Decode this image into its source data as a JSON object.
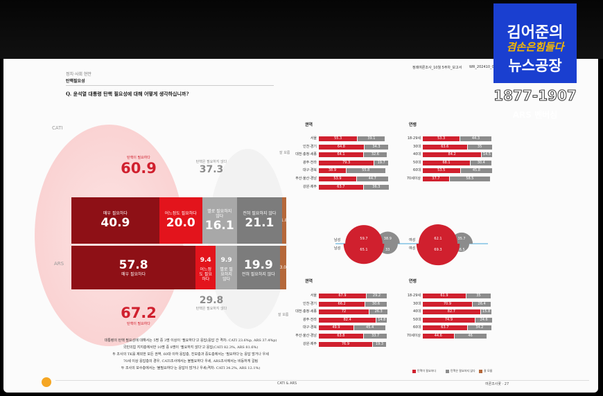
{
  "overlay": {
    "line1": "김어준의",
    "line2": "겸손은힘들다",
    "line3": "뉴스공장",
    "phone": "1877-1907",
    "caption": "ARS 벤버심"
  },
  "header": {
    "section": "정치·사회 현안",
    "topic": "탄핵필요성",
    "question": "Q. 윤석열 대통령 탄핵 필요성에 대해 어떻게 생각하십니까?",
    "report": "정례여론조사_10월 5주차_보고서",
    "code": "WR_202410_05"
  },
  "chart_data": [
    {
      "type": "stacked-bar",
      "categories": [
        "CATI",
        "ARS"
      ],
      "xlim": [
        0,
        100
      ],
      "series": [
        {
          "name": "매우 필요하다",
          "color": "#8e1016",
          "values": [
            40.9,
            57.8
          ]
        },
        {
          "name": "어느정도 필요하다",
          "color": "#e3141c",
          "values": [
            20.0,
            9.4
          ]
        },
        {
          "name": "별로 필요하지 않다",
          "color": "#a8a8a8",
          "values": [
            16.1,
            9.9
          ]
        },
        {
          "name": "전혀 필요하지 않다",
          "color": "#7c7c7c",
          "values": [
            21.1,
            19.9
          ]
        },
        {
          "name": "잘 모름",
          "color": "#b5683a",
          "values": [
            1.8,
            3.0
          ]
        }
      ],
      "value_labels": [
        [
          "40.9",
          "57.8"
        ],
        [
          "20.0",
          "9.4"
        ],
        [
          "16.1",
          "9.9"
        ],
        [
          "21.1",
          "19.9"
        ],
        [
          "1.8",
          "3.0"
        ]
      ],
      "totals": [
        {
          "name": "탄핵이 필요하다",
          "color": "#d0202e",
          "values": [
            60.9,
            67.2
          ]
        },
        {
          "name": "탄핵은 필요하지 않다",
          "color": "#8c8c8c",
          "values": [
            37.3,
            29.8
          ]
        }
      ]
    },
    {
      "type": "hbar",
      "title": "권역",
      "xlim": [
        0,
        100
      ],
      "categories": [
        "서울",
        "인천·경기",
        "대전·충청·세종",
        "광주·전라",
        "대구·경북",
        "부산·울산·경남",
        "강원·제주"
      ],
      "series": [
        {
          "name": "탄핵이 필요하다",
          "color": "#d0202e",
          "values": [
            55.3,
            64.8,
            64.1,
            79.3,
            38.9,
            53.9,
            63.7
          ]
        },
        {
          "name": "탄핵은 필요하지 않다",
          "color": "#8c8c8c",
          "values": [
            39.1,
            34.3,
            32.6,
            19.7,
            55.8,
            44.7,
            36.3
          ]
        }
      ]
    },
    {
      "type": "hbar",
      "title": "연령",
      "xlim": [
        0,
        100
      ],
      "categories": [
        "18-29세",
        "30대",
        "40대",
        "50대",
        "60대",
        "70세이상"
      ],
      "series": [
        {
          "name": "탄핵이 필요하다",
          "color": "#d0202e",
          "values": [
            53.3,
            63.6,
            84.2,
            68.1,
            53.5,
            37.7
          ]
        },
        {
          "name": "탄핵은 필요하지 않다",
          "color": "#8c8c8c",
          "values": [
            44.3,
            35.0,
            14.5,
            30.4,
            45.8,
            58.5
          ]
        }
      ]
    },
    {
      "type": "semicircle",
      "half": "top",
      "categories": [
        "남성",
        "여성"
      ],
      "series": [
        {
          "name": "탄핵이 필요하다",
          "color": "#d0202e",
          "values": [
            59.7,
            62.1
          ]
        },
        {
          "name": "탄핵은 필요하지 않다",
          "color": "#8c8c8c",
          "values": [
            38.9,
            35.7
          ]
        }
      ]
    },
    {
      "type": "hbar",
      "title": "권역",
      "xlim": [
        0,
        100
      ],
      "categories": [
        "서울",
        "인천·경기",
        "대전·충청·세종",
        "광주·전라",
        "대구·경북",
        "부산·울산·경남",
        "강원·제주"
      ],
      "series": [
        {
          "name": "탄핵이 필요하다",
          "color": "#d0202e",
          "values": [
            67.9,
            66.2,
            72.0,
            82.4,
            49.9,
            63.8,
            76.9
          ]
        },
        {
          "name": "탄핵은 필요하지 않다",
          "color": "#8c8c8c",
          "values": [
            29.2,
            30.6,
            26.3,
            14.8,
            45.4,
            33.7,
            19.3
          ]
        }
      ]
    },
    {
      "type": "hbar",
      "title": "연령",
      "xlim": [
        0,
        100
      ],
      "categories": [
        "18-29세",
        "30대",
        "40대",
        "50대",
        "60대",
        "70세이상"
      ],
      "series": [
        {
          "name": "탄핵이 필요하다",
          "color": "#d0202e",
          "values": [
            61.9,
            70.9,
            82.7,
            74.9,
            63.7,
            44.6
          ]
        },
        {
          "name": "탄핵은 필요하지 않다",
          "color": "#8c8c8c",
          "values": [
            35.0,
            26.4,
            15.8,
            24.6,
            34.2,
            46.0
          ]
        }
      ]
    },
    {
      "type": "semicircle",
      "half": "bottom",
      "categories": [
        "남성",
        "여성"
      ],
      "series": [
        {
          "name": "탄핵이 필요하다",
          "color": "#d0202e",
          "values": [
            65.1,
            69.3
          ]
        },
        {
          "name": "탄핵은 필요하지 않다",
          "color": "#8c8c8c",
          "values": [
            33.0,
            26.5
          ]
        }
      ]
    }
  ],
  "body_text": [
    "대통령의 탄핵 필요성에 대해서는 5명 중 3명 이상이 '필요하다'고 응답(응답 간 격차: CATI 23.6%p, ARS 37.4%p)",
    "국민의힘 지지층에서만 10명 중 8명이 '필요하지 않다'고 응답(CATI 82.3%, ARS 81.6%)",
    "두 조사의 TK를 제외한 모든 권역, 60대 이하 응답층, 진보층과 중도층에서는 '필요하다'는 응답 많거나 우세",
    "70세 이상 응답층의 경우, CATI조사에서는 불필요하다 우세, ARS조사에서는 비등하게 갈림",
    "두 조사의 보수층에서는 '불필요하다'는 응답이 많거나 우세(격차: CATI 34.2%, ARS 12.1%)"
  ],
  "footer": {
    "center": "CATI & ARS",
    "right": "여론조사꽃 · 27"
  }
}
